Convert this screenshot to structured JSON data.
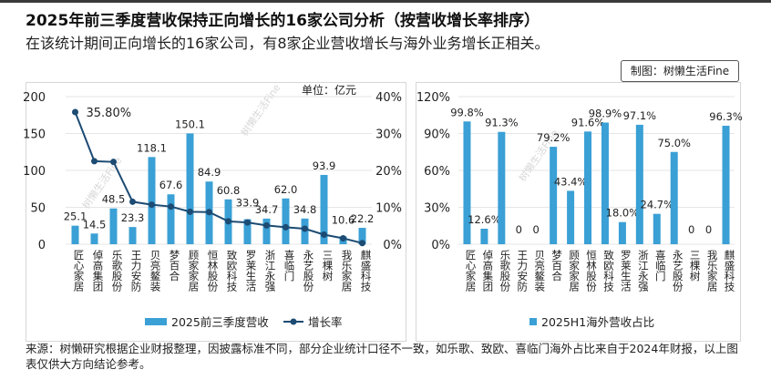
{
  "header": {
    "title": "2025年前三季度营收保持正向增长的16家公司分析（按营收增长率排序）",
    "subtitle": "在该统计期间正向增长的16家公司，有8家企业营收增长与海外业务增长正相关。",
    "credit": "制图：树懒生活Fine"
  },
  "watermark": "树懒生活Fine",
  "colors": {
    "bar": "#3aa0d5",
    "line": "#1c4b73",
    "text": "#222222",
    "grid": "#e6e6e6"
  },
  "chart_data": [
    {
      "type": "bar",
      "title": "",
      "unit_label": "单位：亿元",
      "categories": [
        "匠心家居",
        "倬高集团",
        "乐歌股份",
        "王力安防",
        "贝亮鳌装",
        "梦百合",
        "顾家家居",
        "恒林股份",
        "致欧科技",
        "罗莱生活",
        "浙江永强",
        "喜临门",
        "永艺股份",
        "三棵树",
        "我乐家居",
        "麒盛科技"
      ],
      "series": [
        {
          "name": "2025前三季度营收",
          "kind": "bar",
          "axis": "left",
          "values": [
            25.1,
            14.5,
            48.5,
            23.3,
            118.1,
            67.6,
            150.1,
            84.9,
            60.8,
            33.9,
            34.7,
            62.0,
            34.8,
            93.9,
            10.6,
            22.2
          ],
          "labels": [
            "25.1",
            "14.5",
            "48.5",
            "23.3",
            "118.1",
            "67.6",
            "150.1",
            "84.9",
            "60.8",
            "33.9",
            "34.7",
            "62.0",
            "34.8",
            "93.9",
            "10.6",
            "22.2"
          ]
        },
        {
          "name": "增长率",
          "kind": "line",
          "axis": "right",
          "values": [
            35.8,
            22.5,
            22.3,
            11.5,
            10.7,
            10.2,
            8.8,
            8.7,
            6.2,
            5.9,
            5.1,
            4.6,
            4.2,
            2.6,
            1.6,
            0.3
          ],
          "annotation": "35.80%"
        }
      ],
      "ylim_left": [
        0,
        200
      ],
      "yticks_left": [
        "0",
        "50",
        "100",
        "150",
        "200"
      ],
      "ylim_right": [
        0,
        40
      ],
      "yticks_right": [
        "0%",
        "10%",
        "20%",
        "30%",
        "40%"
      ],
      "legend": [
        "2025前三季度营收",
        "增长率"
      ]
    },
    {
      "type": "bar",
      "title": "",
      "categories": [
        "匠心家居",
        "倬高集团",
        "乐歌股份",
        "王力安防",
        "贝亮鳌装",
        "梦百合",
        "顾家家居",
        "恒林股份",
        "致欧科技",
        "罗莱生活",
        "浙江永强",
        "喜临门",
        "永艺股份",
        "三棵树",
        "我乐家居",
        "麒盛科技"
      ],
      "series": [
        {
          "name": "2025H1海外营收占比",
          "values": [
            99.8,
            12.6,
            91.3,
            0,
            0,
            79.2,
            43.4,
            91.6,
            98.9,
            18.0,
            97.1,
            24.7,
            75.0,
            0,
            0,
            96.3
          ],
          "labels": [
            "99.8%",
            "12.6%",
            "91.3%",
            "0",
            "0",
            "79.2%",
            "43.4%",
            "91.6%",
            "98.9%",
            "18.0%",
            "97.1%",
            "24.7%",
            "75.0%",
            "0",
            "0",
            "96.3%"
          ]
        }
      ],
      "ylim": [
        0,
        120
      ],
      "yticks": [
        "0%",
        "30%",
        "60%",
        "90%",
        "120%"
      ],
      "legend": [
        "2025H1海外营收占比"
      ]
    }
  ],
  "footer": {
    "source": "来源：树懒研究根据企业财报整理，因披露标准不同，部分企业统计口径不一致，如乐歌、致欧、喜临门海外占比来自于2024年财报，以上图表仅供大方向结论参考。"
  }
}
